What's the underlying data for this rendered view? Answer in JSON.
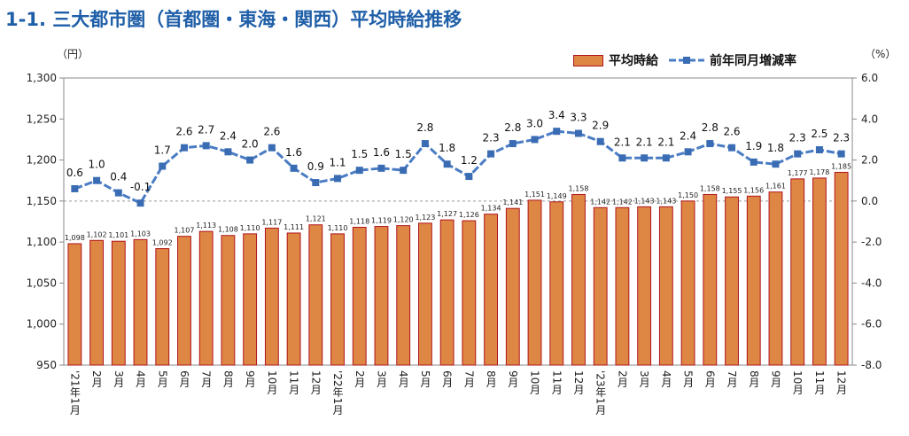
{
  "page": {
    "title": "1-1. 三大都市圏（首都圏・東海・関西）平均時給推移"
  },
  "colors": {
    "title": "#1f5fa8",
    "bar_fill": "#de8643",
    "bar_border": "#b0141c",
    "line": "#4a7cc4",
    "marker": "#3a6cb4",
    "zero_line": "#999999"
  },
  "chart_data": {
    "type": "bar",
    "title": "1-1. 三大都市圏（首都圏・東海・関西）平均時給推移",
    "left_unit": "（円）",
    "right_unit": "（%）",
    "grid": false,
    "legend_position": "top-right",
    "categories": [
      "'21年1月",
      "2月",
      "3月",
      "4月",
      "5月",
      "6月",
      "7月",
      "8月",
      "9月",
      "10月",
      "11月",
      "12月",
      "'22年1月",
      "2月",
      "3月",
      "4月",
      "5月",
      "6月",
      "7月",
      "8月",
      "9月",
      "10月",
      "11月",
      "12月",
      "'23年1月",
      "2月",
      "3月",
      "4月",
      "5月",
      "6月",
      "7月",
      "8月",
      "9月",
      "10月",
      "11月",
      "12月"
    ],
    "y_left": {
      "min": 950,
      "max": 1300,
      "ticks": [
        "950",
        "1,000",
        "1,050",
        "1,100",
        "1,150",
        "1,200",
        "1,250",
        "1,300"
      ],
      "tick_values": [
        950,
        1000,
        1050,
        1100,
        1150,
        1200,
        1250,
        1300
      ]
    },
    "y_right": {
      "min": -8,
      "max": 6,
      "ticks": [
        "-8.0",
        "-6.0",
        "-4.0",
        "-2.0",
        "0.0",
        "2.0",
        "4.0",
        "6.0"
      ],
      "tick_values": [
        -8,
        -6,
        -4,
        -2,
        0,
        2,
        4,
        6
      ]
    },
    "series": [
      {
        "name": "平均時給",
        "type": "bar",
        "axis": "left",
        "values": [
          1098,
          1102,
          1101,
          1103,
          1092,
          1107,
          1113,
          1108,
          1110,
          1117,
          1111,
          1121,
          1110,
          1118,
          1119,
          1120,
          1123,
          1127,
          1126,
          1134,
          1141,
          1151,
          1149,
          1158,
          1142,
          1142,
          1143,
          1143,
          1150,
          1158,
          1155,
          1156,
          1161,
          1177,
          1178,
          1185
        ],
        "labels": [
          "1,098",
          "1,102",
          "1,101",
          "1,103",
          "1,092",
          "1,107",
          "1,113",
          "1,108",
          "1,110",
          "1,117",
          "1,111",
          "1,121",
          "1,110",
          "1,118",
          "1,119",
          "1,120",
          "1,123",
          "1,127",
          "1,126",
          "1,134",
          "1,141",
          "1,151",
          "1,149",
          "1,158",
          "1,142",
          "1,142",
          "1,143",
          "1,143",
          "1,150",
          "1,158",
          "1,155",
          "1,156",
          "1,161",
          "1,177",
          "1,178",
          "1,185"
        ]
      },
      {
        "name": "前年同月増減率",
        "type": "line",
        "axis": "right",
        "values": [
          0.6,
          1.0,
          0.4,
          -0.1,
          1.7,
          2.6,
          2.7,
          2.4,
          2.0,
          2.6,
          1.6,
          0.9,
          1.1,
          1.5,
          1.6,
          1.5,
          2.8,
          1.8,
          1.2,
          2.3,
          2.8,
          3.0,
          3.4,
          3.3,
          2.9,
          2.1,
          2.1,
          2.1,
          2.4,
          2.8,
          2.6,
          1.9,
          1.8,
          2.3,
          2.5,
          2.3
        ],
        "labels": [
          "0.6",
          "1.0",
          "0.4",
          "-0.1",
          "1.7",
          "2.6",
          "2.7",
          "2.4",
          "2.0",
          "2.6",
          "1.6",
          "0.9",
          "1.1",
          "1.5",
          "1.6",
          "1.5",
          "2.8",
          "1.8",
          "1.2",
          "2.3",
          "2.8",
          "3.0",
          "3.4",
          "3.3",
          "2.9",
          "2.1",
          "2.1",
          "2.1",
          "2.4",
          "2.8",
          "2.6",
          "1.9",
          "1.8",
          "2.3",
          "2.5",
          "2.3"
        ]
      }
    ]
  }
}
